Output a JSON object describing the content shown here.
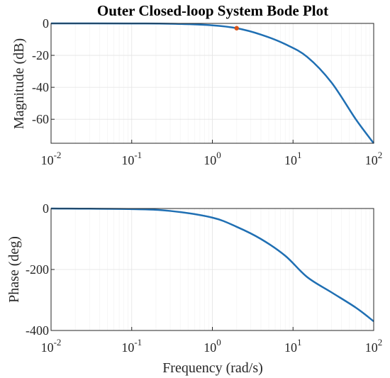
{
  "chart_data": [
    {
      "type": "line",
      "title": "Outer Closed-loop System Bode Plot",
      "xlabel": "",
      "ylabel": "Magnitude (dB)",
      "xscale": "log",
      "xlim": [
        0.01,
        100
      ],
      "ylim": [
        -75,
        0
      ],
      "yticks": [
        0,
        -20,
        -40,
        -60
      ],
      "xtick_base": "10",
      "xtick_exponents": [
        "-2",
        "-1",
        "0",
        "1",
        "2"
      ],
      "grid": true,
      "series": [
        {
          "color": "#1f6fb3",
          "x": [
            0.01,
            0.1,
            0.3,
            1,
            2,
            4,
            8,
            15,
            30,
            60,
            100
          ],
          "y": [
            0,
            -0.05,
            -0.2,
            -1.2,
            -3,
            -7,
            -13,
            -21,
            -37,
            -60,
            -75
          ]
        }
      ],
      "marker": {
        "x": 2,
        "y": -3,
        "color": "#d9541a"
      }
    },
    {
      "type": "line",
      "title": "",
      "xlabel": "Frequency (rad/s)",
      "ylabel": "Phase (deg)",
      "xscale": "log",
      "xlim": [
        0.01,
        100
      ],
      "ylim": [
        -400,
        0
      ],
      "yticks": [
        0,
        -200,
        -400
      ],
      "xtick_base": "10",
      "xtick_exponents": [
        "-2",
        "-1",
        "0",
        "1",
        "2"
      ],
      "grid": true,
      "series": [
        {
          "color": "#1f6fb3",
          "x": [
            0.01,
            0.1,
            0.3,
            1,
            2,
            4,
            8,
            15,
            30,
            60,
            100
          ],
          "y": [
            0,
            -2,
            -8,
            -30,
            -60,
            -100,
            -155,
            -225,
            -275,
            -325,
            -370
          ]
        }
      ]
    }
  ]
}
